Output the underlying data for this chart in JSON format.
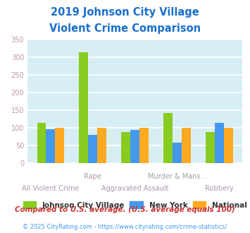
{
  "title_line1": "2019 Johnson City Village",
  "title_line2": "Violent Crime Comparison",
  "title_color": "#1a6fcc",
  "categories": [
    "All Violent Crime",
    "Rape",
    "Aggravated Assault",
    "Murder & Mans...",
    "Robbery"
  ],
  "series": {
    "Johnson City Village": [
      115,
      315,
      88,
      142,
      88
    ],
    "New York": [
      96,
      81,
      94,
      59,
      114
    ],
    "National": [
      100,
      100,
      100,
      100,
      100
    ]
  },
  "bar_colors": {
    "Johnson City Village": "#88cc22",
    "New York": "#4499ee",
    "National": "#ffaa22"
  },
  "ylim": [
    0,
    350
  ],
  "yticks": [
    0,
    50,
    100,
    150,
    200,
    250,
    300,
    350
  ],
  "background_color": "#d8eef5",
  "grid_color": "#ffffff",
  "footnote1": "Compared to U.S. average. (U.S. average equals 100)",
  "footnote2": "© 2025 CityRating.com - https://www.cityrating.com/crime-statistics/",
  "footnote1_color": "#cc3333",
  "footnote2_color": "#4499ee",
  "tick_label_color": "#aa99aa",
  "ytick_label_color": "#bb99aa",
  "tick_label_fontsize": 7,
  "legend_label_color": "#333333"
}
